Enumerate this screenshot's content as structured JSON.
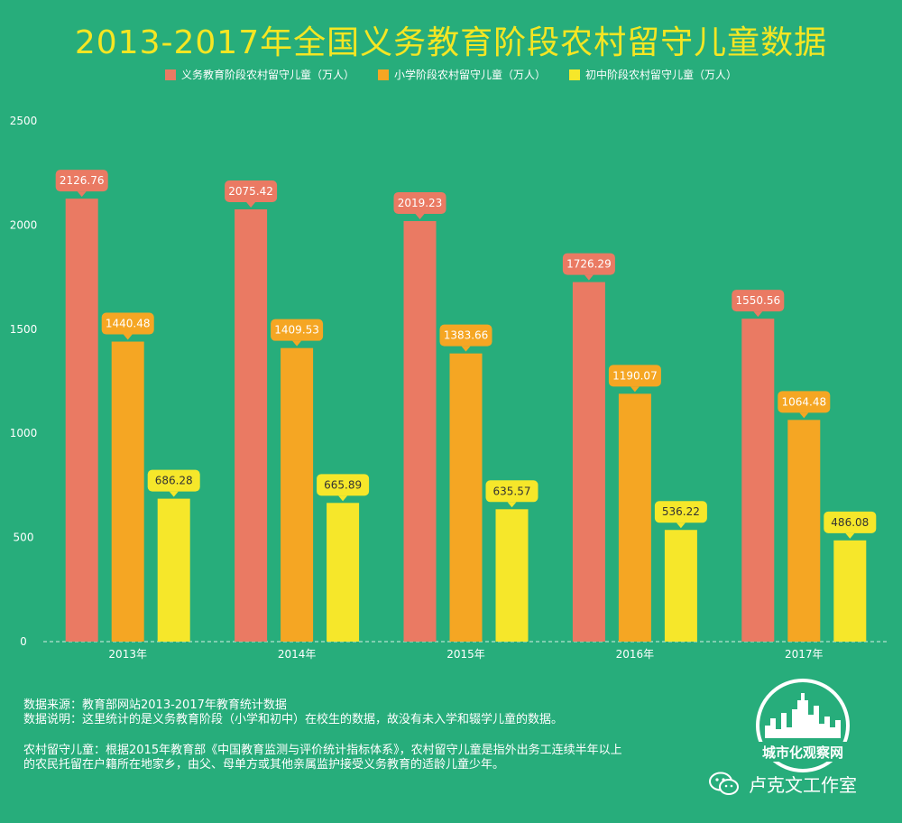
{
  "colors": {
    "background": "#27ad7b",
    "compulsory": "#ea7a63",
    "primary": "#f5a623",
    "junior": "#f6e72a",
    "title": "#f5e623"
  },
  "title": "2013-2017年全国义务教育阶段农村留守儿童数据",
  "chart_data": {
    "type": "bar",
    "title": "2013-2017年全国义务教育阶段农村留守儿童数据",
    "categories": [
      "2013年",
      "2014年",
      "2015年",
      "2016年",
      "2017年"
    ],
    "series": [
      {
        "name": "义务教育阶段农村留守儿童（万人）",
        "values": [
          2126.76,
          2075.42,
          2019.23,
          1726.29,
          1550.56
        ]
      },
      {
        "name": "小学阶段农村留守儿童（万人）",
        "values": [
          1440.48,
          1409.53,
          1383.66,
          1190.07,
          1064.48
        ]
      },
      {
        "name": "初中阶段农村留守儿童（万人）",
        "values": [
          686.28,
          665.89,
          635.57,
          536.22,
          486.08
        ]
      }
    ],
    "ylim": [
      0,
      2500
    ],
    "yticks": [
      "0",
      "500",
      "1000",
      "1500",
      "2000",
      "2500"
    ],
    "xlabel": "",
    "ylabel": "",
    "legend": "top-center",
    "grid": false
  },
  "notes": {
    "source": "数据来源：教育部网站2013-2017年教育统计数据",
    "explanation": "数据说明：这里统计的是义务教育阶段（小学和初中）在校生的数据，故没有未入学和辍学儿童的数据。",
    "definition_1": "农村留守儿童：根据2015年教育部《中国教育监测与评价统计指标体系》，农村留守儿童是指外出务工连续半年以上",
    "definition_2": "的农民托留在户籍所在地家乡，由父、母单方或其他亲属监护接受义务教育的适龄儿童少年。"
  },
  "badge": {
    "text": "城市化观察网"
  },
  "watermark": {
    "text": "卢克文工作室",
    "icon": "wechat-icon"
  }
}
